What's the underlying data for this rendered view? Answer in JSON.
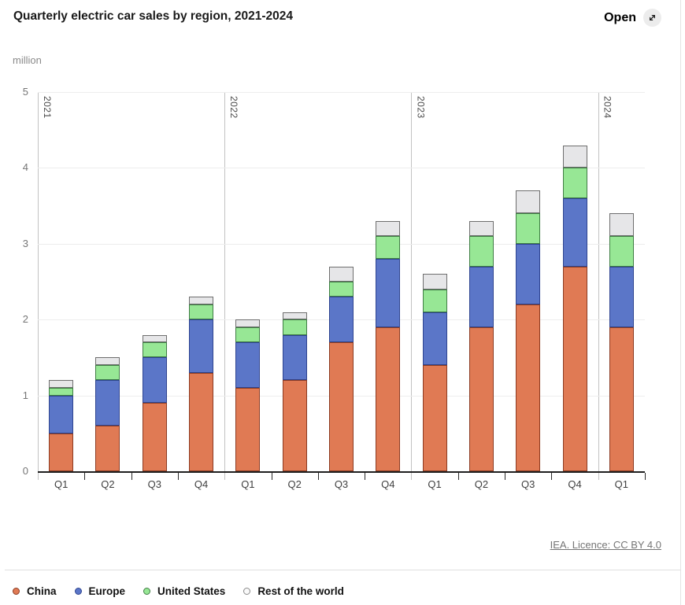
{
  "header": {
    "title": "Quarterly electric car sales by region, 2021-2024",
    "open_label": "Open",
    "open_icon": "expand-diagonal-arrow-icon"
  },
  "footer": {
    "license_link": "IEA. Licence: CC BY 4.0"
  },
  "chart_data": {
    "type": "bar",
    "stacked": true,
    "title": "Quarterly electric car sales by region, 2021-2024",
    "unit_label": "million",
    "categories": [
      "Q1",
      "Q2",
      "Q3",
      "Q4",
      "Q1",
      "Q2",
      "Q3",
      "Q4",
      "Q1",
      "Q2",
      "Q3",
      "Q4",
      "Q1"
    ],
    "year_groups": [
      {
        "label": "2021",
        "start_index": 0
      },
      {
        "label": "2022",
        "start_index": 4
      },
      {
        "label": "2023",
        "start_index": 8
      },
      {
        "label": "2024",
        "start_index": 12
      }
    ],
    "series": [
      {
        "name": "China",
        "color": "#E07A54",
        "border_color": "#8C3B22",
        "values": [
          0.5,
          0.6,
          0.9,
          1.3,
          1.1,
          1.2,
          1.7,
          1.9,
          1.4,
          1.9,
          2.2,
          2.7,
          1.9
        ]
      },
      {
        "name": "Europe",
        "color": "#5B76C8",
        "border_color": "#2E4490",
        "values": [
          0.5,
          0.6,
          0.6,
          0.7,
          0.6,
          0.6,
          0.6,
          0.9,
          0.7,
          0.8,
          0.8,
          0.9,
          0.8
        ]
      },
      {
        "name": "United States",
        "color": "#97E795",
        "border_color": "#3F7D44",
        "values": [
          0.1,
          0.2,
          0.2,
          0.2,
          0.2,
          0.2,
          0.2,
          0.3,
          0.3,
          0.4,
          0.4,
          0.4,
          0.4
        ]
      },
      {
        "name": "Rest of the world",
        "color": "#E6E6E8",
        "border_color": "#6E6E6E",
        "legend_fill": "#FAFAFA",
        "legend_border": "#8A8A8A",
        "values": [
          0.1,
          0.1,
          0.1,
          0.1,
          0.1,
          0.1,
          0.2,
          0.2,
          0.2,
          0.2,
          0.3,
          0.3,
          0.3
        ]
      }
    ],
    "ylim": [
      0,
      5
    ],
    "y_ticks": [
      0,
      1,
      2,
      3,
      4,
      5
    ],
    "grid": "horizontal",
    "legend_position": "bottom"
  }
}
